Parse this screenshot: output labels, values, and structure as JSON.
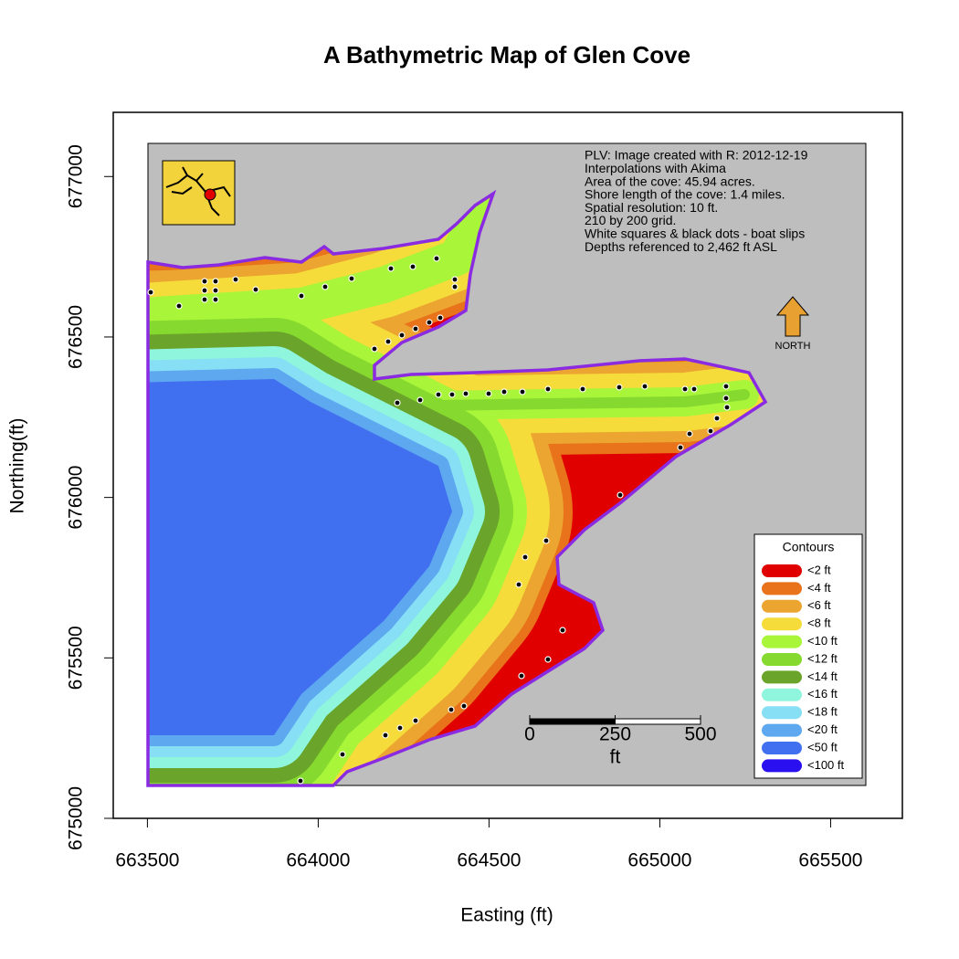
{
  "chart_data": {
    "type": "map",
    "title": "A Bathymetric Map of  Glen Cove",
    "x_label": "Easting (ft)",
    "y_label": "Northing(ft)",
    "xlim": [
      663400,
      665710
    ],
    "ylim": [
      675000,
      677200
    ],
    "xticks": [
      663500,
      664000,
      664500,
      665000,
      665500
    ],
    "yticks": [
      675000,
      675500,
      676000,
      676500,
      677000
    ],
    "annotations": [
      "PLV: Image created with R: 2012-12-19",
      "Interpolations with Akima",
      "Area of the cove: 45.94 acres.",
      "Shore length of the cove: 1.4 miles.",
      "Spatial resolution: 10 ft.",
      "210 by 200 grid.",
      "White squares & black dots - boat slips",
      "Depths referenced to 2,462 ft ASL"
    ],
    "north_label": "NORTH",
    "legend": {
      "title": "Contours",
      "items": [
        {
          "label": "<2 ft",
          "color": "#e00000"
        },
        {
          "label": "<4 ft",
          "color": "#e8731a"
        },
        {
          "label": "<6 ft",
          "color": "#eba530"
        },
        {
          "label": "<8 ft",
          "color": "#f5dc3a"
        },
        {
          "label": "<10 ft",
          "color": "#a8f53a"
        },
        {
          "label": "<12 ft",
          "color": "#86d92e"
        },
        {
          "label": "<14 ft",
          "color": "#6aa42a"
        },
        {
          "label": "<16 ft",
          "color": "#8ff5dc"
        },
        {
          "label": "<18 ft",
          "color": "#86dff5"
        },
        {
          "label": "<20 ft",
          "color": "#5ea8f0"
        },
        {
          "label": "<50 ft",
          "color": "#4070f0"
        },
        {
          "label": "<100 ft",
          "color": "#2a10f0"
        }
      ]
    },
    "scale_bar": {
      "ticks": [
        0,
        250,
        500
      ],
      "unit": "ft"
    }
  }
}
